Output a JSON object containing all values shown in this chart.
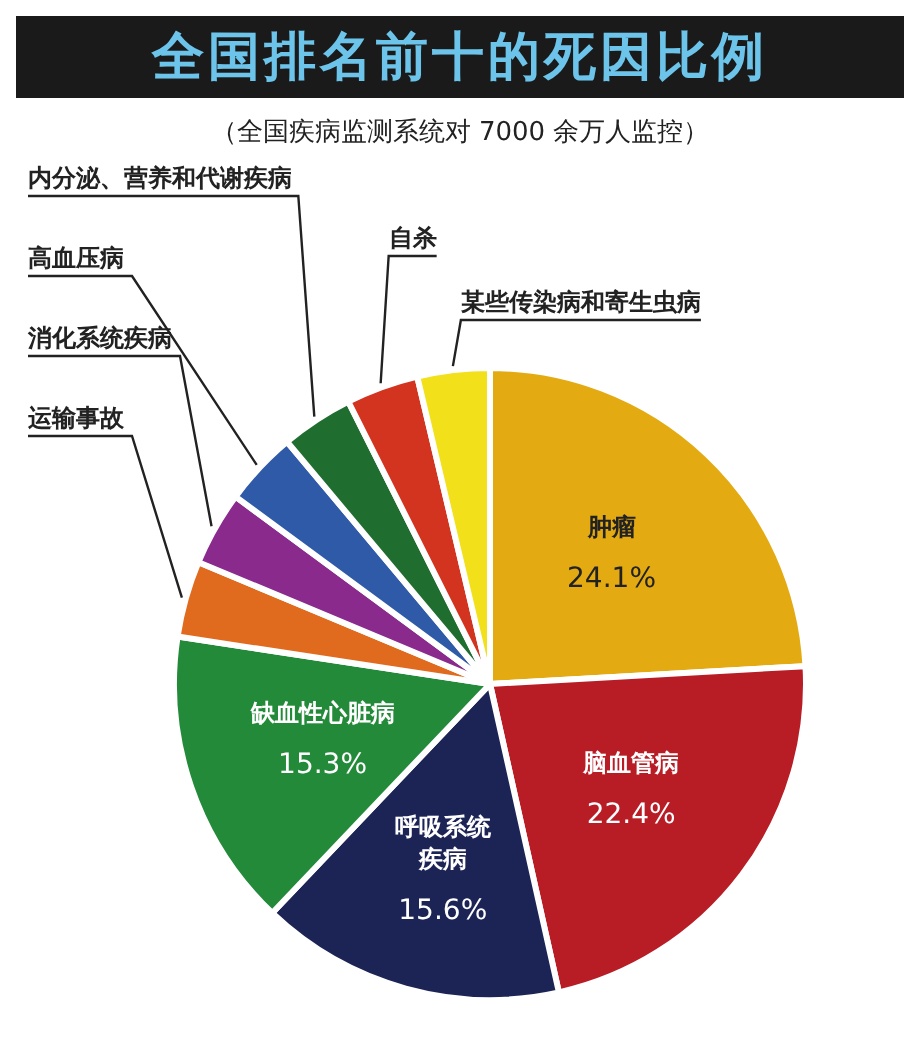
{
  "chart_data": {
    "type": "pie",
    "title": "全国排名前十的死因比例",
    "subtitle": "（全国疾病监测系统对 7000 余万人监控）",
    "categories": [
      "肿瘤",
      "脑血管病",
      "呼吸系统疾病",
      "缺血性心脏病",
      "运输事故",
      "消化系统疾病",
      "高血压病",
      "内分泌、营养和代谢疾病",
      "自杀",
      "某些传染病和寄生虫病"
    ],
    "values": [
      24.1,
      22.4,
      15.6,
      15.3,
      3.9,
      3.8,
      3.8,
      3.7,
      3.7,
      3.7
    ],
    "colors": [
      "#e3aa12",
      "#b81c25",
      "#1c2456",
      "#238a3a",
      "#e06a1e",
      "#8a2a8c",
      "#2f5aa8",
      "#1f6e30",
      "#d2341f",
      "#f2e01a"
    ],
    "value_labels": [
      "24.1%",
      "22.4%",
      "15.6%",
      "15.3%",
      null,
      null,
      null,
      null,
      null,
      null
    ],
    "legend": false
  }
}
